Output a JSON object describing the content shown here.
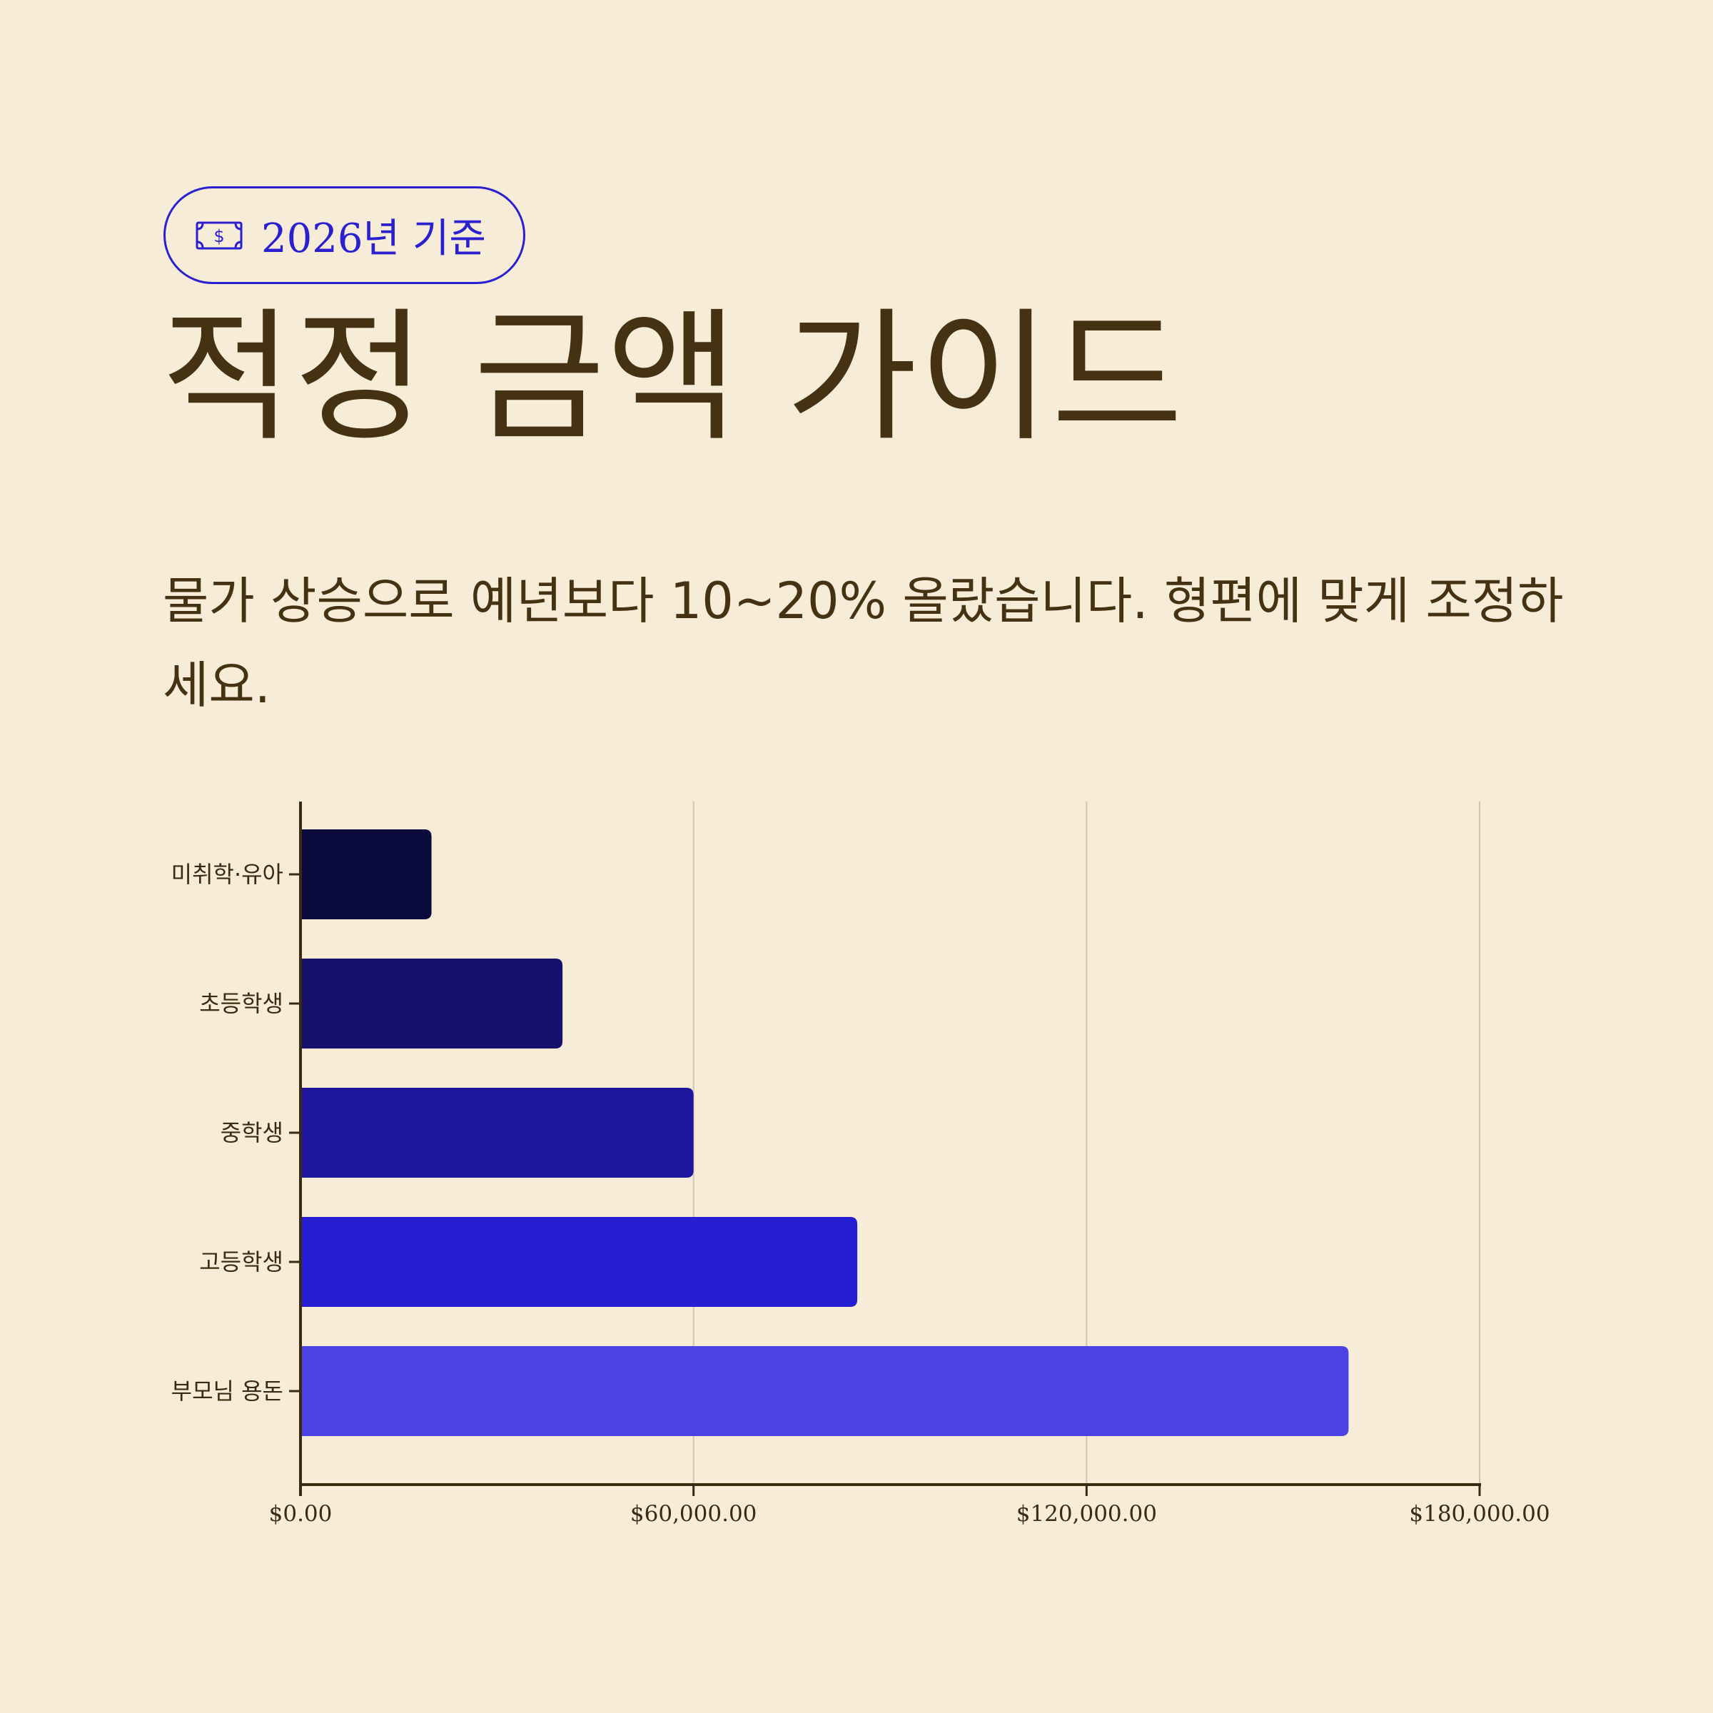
{
  "badge": {
    "icon": "banknote-icon",
    "text": "2026년 기준",
    "color": "#2a20d0"
  },
  "title": "적정 금액 가이드",
  "subtitle": "물가 상승으로 예년보다 10~20% 올랐습니다. 형편에 맞게 조정하세요.",
  "chart_data": {
    "type": "bar",
    "orientation": "horizontal",
    "categories": [
      "미취학·유아",
      "초등학생",
      "중학생",
      "고등학생",
      "부모님 용돈"
    ],
    "values": [
      20000,
      40000,
      60000,
      85000,
      160000
    ],
    "colors": [
      "#0b0a3c",
      "#16126c",
      "#1e179e",
      "#261ed4",
      "#4a42e3"
    ],
    "xlim": [
      0,
      180000
    ],
    "xticks": [
      0,
      60000,
      120000,
      180000
    ],
    "xtick_labels": [
      "$0.00",
      "$60,000.00",
      "$120,000.00",
      "$180,000.00"
    ],
    "grid": "vertical",
    "legend": "none",
    "title": "",
    "xlabel": "",
    "ylabel": ""
  }
}
